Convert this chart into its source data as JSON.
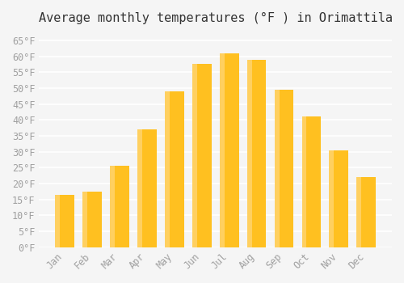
{
  "title": "Average monthly temperatures (°F ) in Orimattila",
  "months": [
    "Jan",
    "Feb",
    "Mar",
    "Apr",
    "May",
    "Jun",
    "Jul",
    "Aug",
    "Sep",
    "Oct",
    "Nov",
    "Dec"
  ],
  "values": [
    16.5,
    17.5,
    25.5,
    37.0,
    49.0,
    57.5,
    61.0,
    59.0,
    49.5,
    41.0,
    30.5,
    22.0
  ],
  "bar_color": "#FFC020",
  "bar_edge_color": "#FFD060",
  "background_color": "#F5F5F5",
  "grid_color": "#FFFFFF",
  "text_color": "#A0A0A0",
  "ylim": [
    0,
    68
  ],
  "yticks": [
    0,
    5,
    10,
    15,
    20,
    25,
    30,
    35,
    40,
    45,
    50,
    55,
    60,
    65
  ],
  "ytick_labels": [
    "0°F",
    "5°F",
    "10°F",
    "15°F",
    "20°F",
    "25°F",
    "30°F",
    "35°F",
    "40°F",
    "45°F",
    "50°F",
    "55°F",
    "60°F",
    "65°F"
  ],
  "title_fontsize": 11,
  "tick_fontsize": 8.5,
  "font_family": "monospace"
}
